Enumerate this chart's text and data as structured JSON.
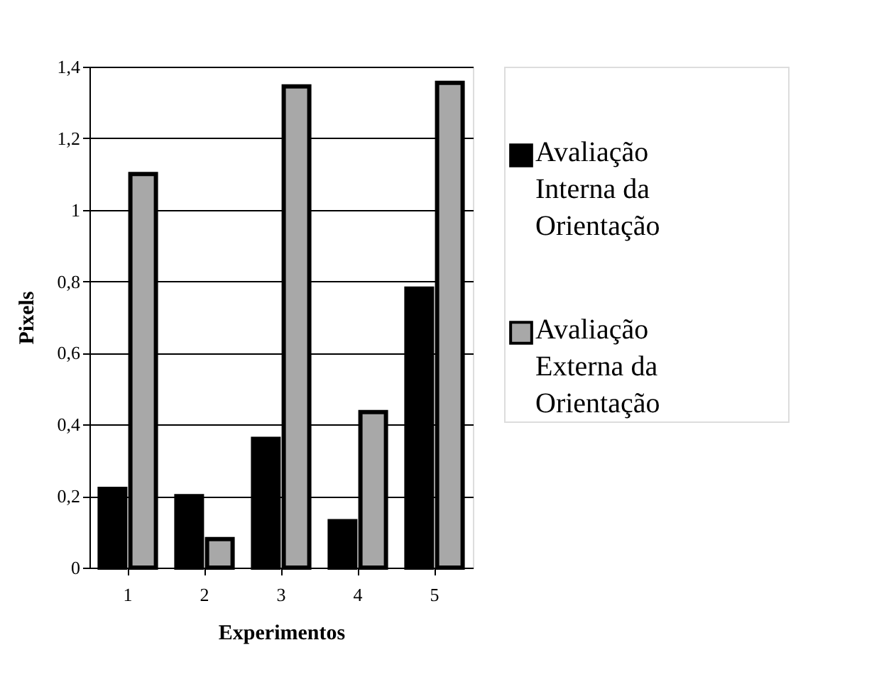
{
  "chart_data": {
    "type": "bar",
    "xlabel": "Experimentos",
    "ylabel": "Pixels",
    "categories": [
      "1",
      "2",
      "3",
      "4",
      "5"
    ],
    "series": [
      {
        "name": "Avaliação Interna da Orientação",
        "color": "#000000",
        "values": [
          0.22,
          0.2,
          0.36,
          0.13,
          0.78
        ]
      },
      {
        "name": "Avaliação Externa da Orientação",
        "color": "#a8a8a8",
        "values": [
          1.1,
          0.08,
          1.345,
          0.435,
          1.355
        ]
      }
    ],
    "ylim": [
      0,
      1.4
    ],
    "yticks": [
      {
        "value": 0,
        "label": "0"
      },
      {
        "value": 0.2,
        "label": "0,2"
      },
      {
        "value": 0.4,
        "label": "0,4"
      },
      {
        "value": 0.6,
        "label": "0,6"
      },
      {
        "value": 0.8,
        "label": "0,8"
      },
      {
        "value": 1,
        "label": "1"
      },
      {
        "value": 1.2,
        "label": "1,2"
      },
      {
        "value": 1.4,
        "label": "1,4"
      }
    ],
    "grid": "y",
    "legend": "right"
  }
}
